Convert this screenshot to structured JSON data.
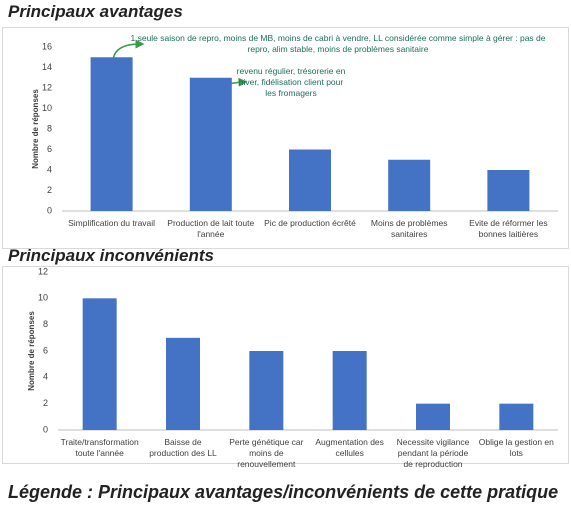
{
  "chart_data": [
    {
      "type": "bar",
      "title": "Principaux avantages",
      "y_label": "Nombre de réponses",
      "categories": [
        "Simplification du travail",
        "Production de lait toute l'année",
        "Pic de production écrêté",
        "Moins de problèmes sanitaires",
        "Evite de réformer les bonnes laitières"
      ],
      "values": [
        15,
        13,
        6,
        5,
        4
      ],
      "color": "#4472c4",
      "ylim": [
        0,
        16
      ],
      "yticks": [
        0,
        2,
        4,
        6,
        8,
        10,
        12,
        14,
        16
      ],
      "grid": false,
      "annotations": [
        "1 seule saison de repro, moins de MB, moins de cabri à vendre, LL considérée comme simple à gérer : pas de repro, alim stable, moins de problèmes sanitaire",
        "revenu régulier, trésorerie en hiver, fidélisation client pour les fromagers"
      ]
    },
    {
      "type": "bar",
      "title": "Principaux inconvénients",
      "y_label": "Nombre de réponses",
      "categories": [
        "Traite/transformation toute l'année",
        "Baisse de production des LL",
        "Perte génétique car moins de renouvellement",
        "Augmentation des cellules",
        "Necessite vigilance pendant la période de reproduction",
        "Oblige la gestion en lots"
      ],
      "values": [
        10,
        7,
        6,
        6,
        2,
        2
      ],
      "color": "#4472c4",
      "ylim": [
        0,
        12
      ],
      "yticks": [
        0,
        2,
        4,
        6,
        8,
        10,
        12
      ],
      "grid": false
    }
  ],
  "caption": "Légende : Principaux avantages/inconvénients de cette pratique"
}
